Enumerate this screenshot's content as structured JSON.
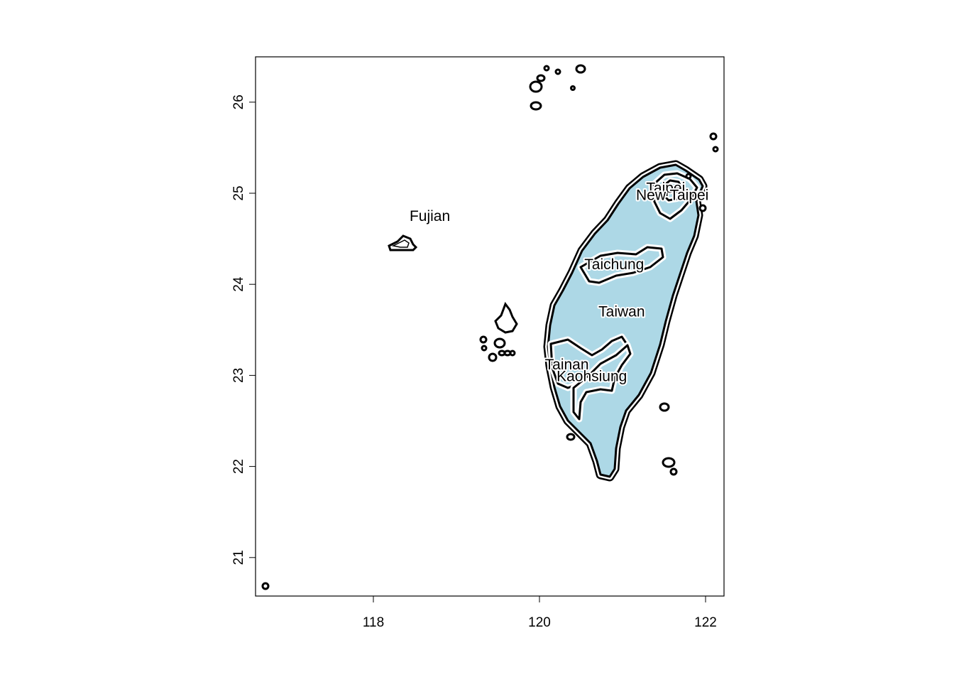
{
  "map": {
    "x_axis": {
      "ticks": [
        118,
        120,
        122
      ],
      "labels": [
        "118",
        "120",
        "122"
      ]
    },
    "y_axis": {
      "ticks": [
        21,
        22,
        23,
        24,
        25,
        26
      ],
      "labels": [
        "21",
        "22",
        "23",
        "24",
        "25",
        "26"
      ]
    },
    "fill_color": "#add8e6",
    "outline_color": "#000000",
    "regions": [
      {
        "name": "Fujian",
        "lon": 118.68,
        "lat": 24.75,
        "halo": false
      },
      {
        "name": "Taipei",
        "lon": 121.52,
        "lat": 25.06,
        "halo": true
      },
      {
        "name": "New Taipei",
        "lon": 121.6,
        "lat": 24.98,
        "halo": true
      },
      {
        "name": "Taichung",
        "lon": 120.9,
        "lat": 24.22,
        "halo": true
      },
      {
        "name": "Taiwan",
        "lon": 120.99,
        "lat": 23.7,
        "halo": true
      },
      {
        "name": "Tainan",
        "lon": 120.33,
        "lat": 23.12,
        "halo": true
      },
      {
        "name": "Kaohsiung",
        "lon": 120.63,
        "lat": 22.99,
        "halo": true
      }
    ]
  }
}
